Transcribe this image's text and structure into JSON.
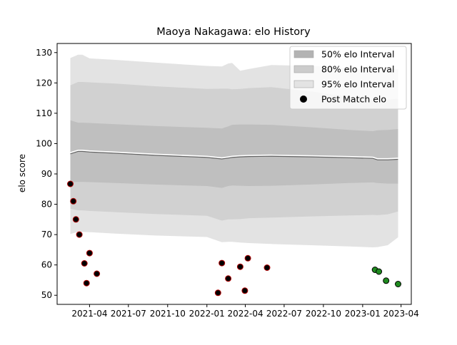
{
  "chart_data": {
    "type": "area",
    "title": "Maoya Nakagawa: elo History",
    "xlabel": "",
    "ylabel": "elo score",
    "x_axis": {
      "type": "date",
      "range": [
        "2021-01-15",
        "2023-04-25"
      ],
      "ticks": [
        {
          "date": "2021-04-01",
          "label": "2021-04"
        },
        {
          "date": "2021-07-01",
          "label": "2021-07"
        },
        {
          "date": "2021-10-01",
          "label": "2021-10"
        },
        {
          "date": "2022-01-01",
          "label": "2022-01"
        },
        {
          "date": "2022-04-01",
          "label": "2022-04"
        },
        {
          "date": "2022-07-01",
          "label": "2022-07"
        },
        {
          "date": "2022-10-01",
          "label": "2022-10"
        },
        {
          "date": "2023-01-01",
          "label": "2023-01"
        },
        {
          "date": "2023-04-01",
          "label": "2023-04"
        }
      ]
    },
    "ylim": [
      47,
      133
    ],
    "y_ticks": [
      50,
      60,
      70,
      80,
      90,
      100,
      110,
      120,
      130
    ],
    "grid": false,
    "legend_position": "top-right",
    "legend": [
      {
        "label": "50% elo Interval",
        "kind": "band",
        "color": "#b3b3b3"
      },
      {
        "label": "80% elo Interval",
        "kind": "band",
        "color": "#cccccc"
      },
      {
        "label": "95% elo Interval",
        "kind": "band",
        "color": "#e3e3e3"
      },
      {
        "label": "Post Match elo",
        "kind": "marker",
        "color": "#000000"
      }
    ],
    "series": {
      "dates": [
        "2021-02-15",
        "2021-03-05",
        "2021-03-15",
        "2021-04-01",
        "2021-06-01",
        "2021-09-01",
        "2022-01-01",
        "2022-02-05",
        "2022-02-20",
        "2022-03-01",
        "2022-03-20",
        "2022-04-10",
        "2022-06-01",
        "2022-09-01",
        "2022-12-01",
        "2023-01-25",
        "2023-02-05",
        "2023-03-01",
        "2023-03-25"
      ],
      "mean": [
        97,
        97.8,
        97.8,
        97.6,
        97.2,
        96.5,
        95.8,
        95.3,
        95.6,
        95.8,
        96,
        96.1,
        96.2,
        96,
        95.7,
        95.5,
        95,
        95,
        95.2
      ],
      "p50_low": [
        87.3,
        87.4,
        87.4,
        87.3,
        87,
        86.5,
        86,
        85.4,
        86,
        86.2,
        86.1,
        86,
        86.1,
        86.5,
        87,
        87.2,
        87,
        86.8,
        86.8
      ],
      "p50_high": [
        107.7,
        106.9,
        106.9,
        106.8,
        106.4,
        105.8,
        105.2,
        105,
        105.7,
        106.2,
        106.3,
        106.3,
        106.2,
        105.4,
        104.5,
        104.1,
        104.4,
        104.5,
        104.8
      ],
      "p80_low": [
        78.5,
        78,
        78,
        77.8,
        77.4,
        76.8,
        76.2,
        74.6,
        75,
        75,
        75.1,
        75.4,
        75.6,
        76,
        76.3,
        76.5,
        76.4,
        76.7,
        77.6
      ],
      "p80_high": [
        119.2,
        120.3,
        120.3,
        120.2,
        119.8,
        118.9,
        118,
        118.1,
        118.1,
        117.9,
        118,
        118.3,
        118.6,
        117.2,
        115.4,
        114.4,
        114.3,
        114.5,
        114.8
      ],
      "p95_low": [
        70.2,
        70.9,
        70.9,
        70.8,
        70.3,
        69.7,
        69.2,
        67.5,
        67.6,
        67.6,
        67.4,
        67.2,
        66.9,
        66.5,
        66.1,
        65.8,
        65.9,
        66.5,
        69.1
      ],
      "p95_high": [
        128.2,
        129.3,
        129.3,
        128.1,
        127.6,
        126.7,
        125.6,
        125.4,
        126.4,
        126.6,
        124,
        124.6,
        125.9,
        125.6,
        124.9,
        124.4,
        124.3,
        124.4,
        124.6
      ]
    },
    "post_match": [
      {
        "date": "2021-02-15",
        "elo": 86.7,
        "color": "#000000",
        "edge": "#b00000"
      },
      {
        "date": "2021-02-22",
        "elo": 81,
        "color": "#000000",
        "edge": "#b00000"
      },
      {
        "date": "2021-02-28",
        "elo": 75,
        "color": "#000000",
        "edge": "#b00000"
      },
      {
        "date": "2021-03-08",
        "elo": 70,
        "color": "#000000",
        "edge": "#b00000"
      },
      {
        "date": "2021-03-20",
        "elo": 60.5,
        "color": "#000000",
        "edge": "#b00000"
      },
      {
        "date": "2021-03-25",
        "elo": 54,
        "color": "#000000",
        "edge": "#b00000"
      },
      {
        "date": "2021-04-01",
        "elo": 63.9,
        "color": "#000000",
        "edge": "#b00000"
      },
      {
        "date": "2021-04-18",
        "elo": 57.1,
        "color": "#000000",
        "edge": "#b00000"
      },
      {
        "date": "2022-01-27",
        "elo": 50.8,
        "color": "#000000",
        "edge": "#b00000"
      },
      {
        "date": "2022-02-05",
        "elo": 60.6,
        "color": "#000000",
        "edge": "#b00000"
      },
      {
        "date": "2022-02-20",
        "elo": 55.5,
        "color": "#000000",
        "edge": "#b00000"
      },
      {
        "date": "2022-03-20",
        "elo": 59.4,
        "color": "#000000",
        "edge": "#b00000"
      },
      {
        "date": "2022-03-31",
        "elo": 51.5,
        "color": "#000000",
        "edge": "#b00000"
      },
      {
        "date": "2022-04-07",
        "elo": 62.2,
        "color": "#000000",
        "edge": "#b00000"
      },
      {
        "date": "2022-05-22",
        "elo": 59.1,
        "color": "#000000",
        "edge": "#b00000"
      },
      {
        "date": "2023-01-30",
        "elo": 58.4,
        "color": "#1f8a1f",
        "edge": "#000000"
      },
      {
        "date": "2023-02-08",
        "elo": 57.8,
        "color": "#1f8a1f",
        "edge": "#000000"
      },
      {
        "date": "2023-02-25",
        "elo": 54.8,
        "color": "#1f8a1f",
        "edge": "#000000"
      },
      {
        "date": "2023-03-25",
        "elo": 53.7,
        "color": "#1f8a1f",
        "edge": "#000000"
      }
    ],
    "colors": {
      "band_95": "#e3e3e3",
      "band_80": "#d1d1d1",
      "band_50": "#bfbfbf",
      "mean_line": "#ffffff",
      "mean_line_secondary": "#666666"
    }
  }
}
